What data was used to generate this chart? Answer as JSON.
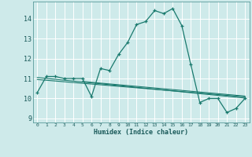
{
  "title": "",
  "xlabel": "Humidex (Indice chaleur)",
  "ylabel": "",
  "background_color": "#ceeaea",
  "grid_color": "#b8d8d8",
  "line_color": "#1a7a6e",
  "xlim": [
    -0.5,
    23.5
  ],
  "ylim": [
    8.8,
    14.85
  ],
  "yticks": [
    9,
    10,
    11,
    12,
    13,
    14
  ],
  "xticks": [
    0,
    1,
    2,
    3,
    4,
    5,
    6,
    7,
    8,
    9,
    10,
    11,
    12,
    13,
    14,
    15,
    16,
    17,
    18,
    19,
    20,
    21,
    22,
    23
  ],
  "main_series": [
    [
      0,
      10.3
    ],
    [
      1,
      11.1
    ],
    [
      2,
      11.1
    ],
    [
      3,
      11.0
    ],
    [
      4,
      11.0
    ],
    [
      5,
      11.0
    ],
    [
      6,
      10.1
    ],
    [
      7,
      11.5
    ],
    [
      8,
      11.4
    ],
    [
      9,
      12.2
    ],
    [
      10,
      12.8
    ],
    [
      11,
      13.7
    ],
    [
      12,
      13.85
    ],
    [
      13,
      14.4
    ],
    [
      14,
      14.25
    ],
    [
      15,
      14.5
    ],
    [
      16,
      13.65
    ],
    [
      17,
      11.7
    ],
    [
      18,
      9.8
    ],
    [
      19,
      10.0
    ],
    [
      20,
      10.0
    ],
    [
      21,
      9.3
    ],
    [
      22,
      9.5
    ],
    [
      23,
      10.0
    ]
  ],
  "reg_lines": [
    [
      [
        0,
        11.05
      ],
      [
        23,
        10.02
      ]
    ],
    [
      [
        0,
        10.95
      ],
      [
        23,
        10.08
      ]
    ],
    [
      [
        5,
        10.85
      ],
      [
        23,
        10.12
      ]
    ]
  ]
}
